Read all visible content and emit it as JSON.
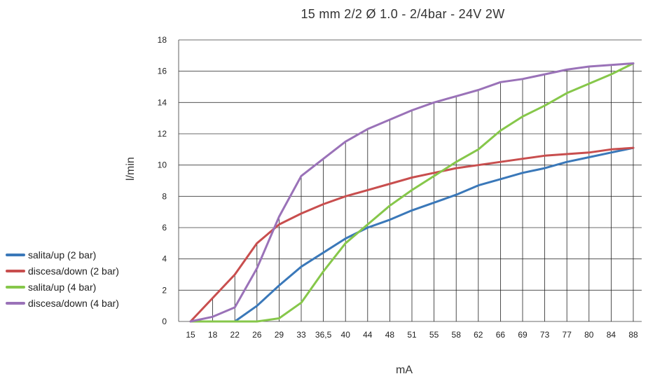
{
  "chart_data": {
    "type": "line",
    "title": "15 mm 2/2  Ø 1.0 - 2/4bar - 24V 2W",
    "xlabel": "mA",
    "ylabel": "l/min",
    "ylim": [
      0,
      18
    ],
    "yticks": [
      "0",
      "2",
      "4",
      "6",
      "8",
      "10",
      "12",
      "14",
      "16",
      "18"
    ],
    "grid": true,
    "legend_position": "left",
    "categories": [
      "15",
      "18",
      "22",
      "26",
      "29",
      "33",
      "36,5",
      "40",
      "44",
      "48",
      "51",
      "55",
      "58",
      "62",
      "66",
      "69",
      "73",
      "77",
      "80",
      "84",
      "88"
    ],
    "series": [
      {
        "name": "salita/up (2 bar)",
        "color": "#3a78b9",
        "values": [
          0,
          0,
          0,
          1.0,
          2.3,
          3.5,
          4.4,
          5.3,
          6.0,
          6.5,
          7.1,
          7.6,
          8.1,
          8.7,
          9.1,
          9.5,
          9.8,
          10.2,
          10.5,
          10.8,
          11.1
        ]
      },
      {
        "name": "discesa/down (2 bar)",
        "color": "#c84e4e",
        "values": [
          0,
          1.5,
          3.0,
          5.0,
          6.2,
          6.9,
          7.5,
          8.0,
          8.4,
          8.8,
          9.2,
          9.5,
          9.8,
          10.0,
          10.2,
          10.4,
          10.6,
          10.7,
          10.8,
          11.0,
          11.1
        ]
      },
      {
        "name": "salita/up (4 bar)",
        "color": "#86c74a",
        "values": [
          0,
          0,
          0,
          0,
          0.2,
          1.2,
          3.2,
          5.0,
          6.2,
          7.4,
          8.4,
          9.3,
          10.2,
          11.0,
          12.2,
          13.1,
          13.8,
          14.6,
          15.2,
          15.8,
          16.5
        ]
      },
      {
        "name": "discesa/down (4 bar)",
        "color": "#9a72b8",
        "values": [
          0,
          0.3,
          0.9,
          3.4,
          6.7,
          9.3,
          10.4,
          11.5,
          12.3,
          12.9,
          13.5,
          14.0,
          14.4,
          14.8,
          15.3,
          15.5,
          15.8,
          16.1,
          16.3,
          16.4,
          16.5
        ]
      }
    ]
  }
}
